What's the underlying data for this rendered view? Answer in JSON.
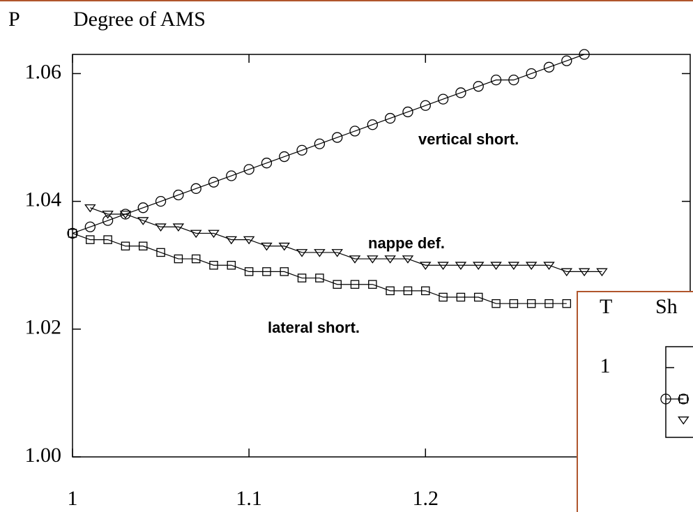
{
  "chart_data": [
    {
      "type": "line",
      "title": "Degree of AMS",
      "y_label": "P",
      "x": [
        1.0,
        1.01,
        1.02,
        1.03,
        1.04,
        1.05,
        1.06,
        1.07,
        1.08,
        1.09,
        1.1,
        1.11,
        1.12,
        1.13,
        1.14,
        1.15,
        1.16,
        1.17,
        1.18,
        1.19,
        1.2,
        1.21,
        1.22,
        1.23,
        1.24,
        1.25,
        1.26,
        1.27,
        1.28,
        1.29,
        1.3
      ],
      "series": [
        {
          "name": "vertical short.",
          "marker": "circle",
          "color": "#000000",
          "values": [
            1.035,
            1.036,
            1.037,
            1.038,
            1.039,
            1.04,
            1.041,
            1.042,
            1.043,
            1.044,
            1.045,
            1.046,
            1.047,
            1.048,
            1.049,
            1.05,
            1.051,
            1.052,
            1.053,
            1.054,
            1.055,
            1.056,
            1.057,
            1.058,
            1.059,
            1.059,
            1.06,
            1.061,
            1.062,
            1.063,
            null
          ]
        },
        {
          "name": "nappe def.",
          "marker": "triangle",
          "color": "#000000",
          "values": [
            null,
            1.039,
            1.038,
            1.038,
            1.037,
            1.036,
            1.036,
            1.035,
            1.035,
            1.034,
            1.034,
            1.033,
            1.033,
            1.032,
            1.032,
            1.032,
            1.031,
            1.031,
            1.031,
            1.031,
            1.03,
            1.03,
            1.03,
            1.03,
            1.03,
            1.03,
            1.03,
            1.03,
            1.029,
            1.029,
            1.029
          ]
        },
        {
          "name": "lateral short.",
          "marker": "square",
          "color": "#000000",
          "values": [
            1.035,
            1.034,
            1.034,
            1.033,
            1.033,
            1.032,
            1.031,
            1.031,
            1.03,
            1.03,
            1.029,
            1.029,
            1.029,
            1.028,
            1.028,
            1.027,
            1.027,
            1.027,
            1.026,
            1.026,
            1.026,
            1.025,
            1.025,
            1.025,
            1.024,
            1.024,
            1.024,
            1.024,
            1.024,
            null,
            null
          ]
        }
      ],
      "xlim": [
        1,
        1.35
      ],
      "xticks": [
        1,
        1.1,
        1.2
      ],
      "ylim": [
        1.0,
        1.063
      ],
      "yticks": [
        {
          "value": 1.0,
          "label": "1.00"
        },
        {
          "value": 1.02,
          "label": "1.02"
        },
        {
          "value": 1.04,
          "label": "1.04"
        },
        {
          "value": 1.06,
          "label": "1.06"
        }
      ]
    },
    {
      "type": "line",
      "title": "Sh",
      "y_label": "T",
      "x": [
        1.0,
        1.01
      ],
      "series": [
        {
          "marker": "circle",
          "color": "#000000",
          "values": [
            0.991,
            0.991
          ]
        },
        {
          "marker": "square",
          "color": "#000000",
          "values": [
            null,
            0.991
          ]
        },
        {
          "marker": "triangle",
          "color": "#000000",
          "values": [
            null,
            0.985
          ]
        }
      ],
      "xlim": [
        1,
        1.35
      ],
      "ylim": [
        0.98,
        1.006
      ],
      "yticks": [
        1
      ]
    }
  ]
}
